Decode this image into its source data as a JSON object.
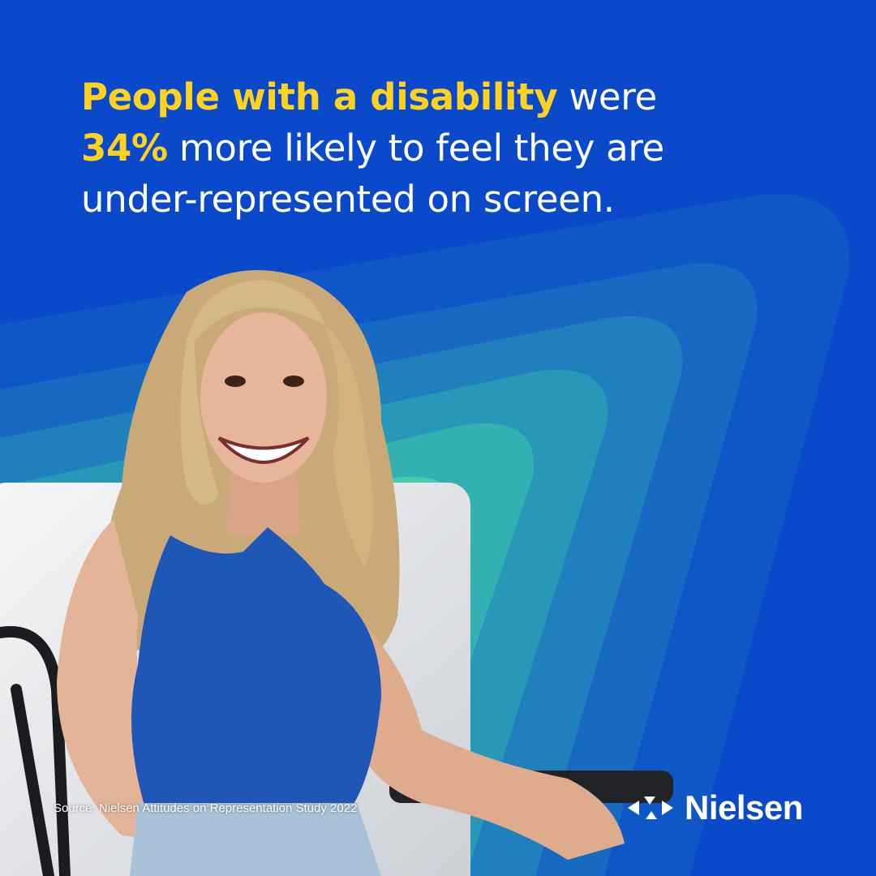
{
  "headline": {
    "line1": {
      "highlight": "People with a disability",
      "text": "were"
    },
    "line2": {
      "highlight": "34%",
      "text": "more likely to feel they are"
    },
    "line3": {
      "text": "under-represented on screen."
    }
  },
  "source": "Source: Nielsen Attitudes on Representation Study 2022",
  "logo": {
    "text": "Nielsen"
  }
}
